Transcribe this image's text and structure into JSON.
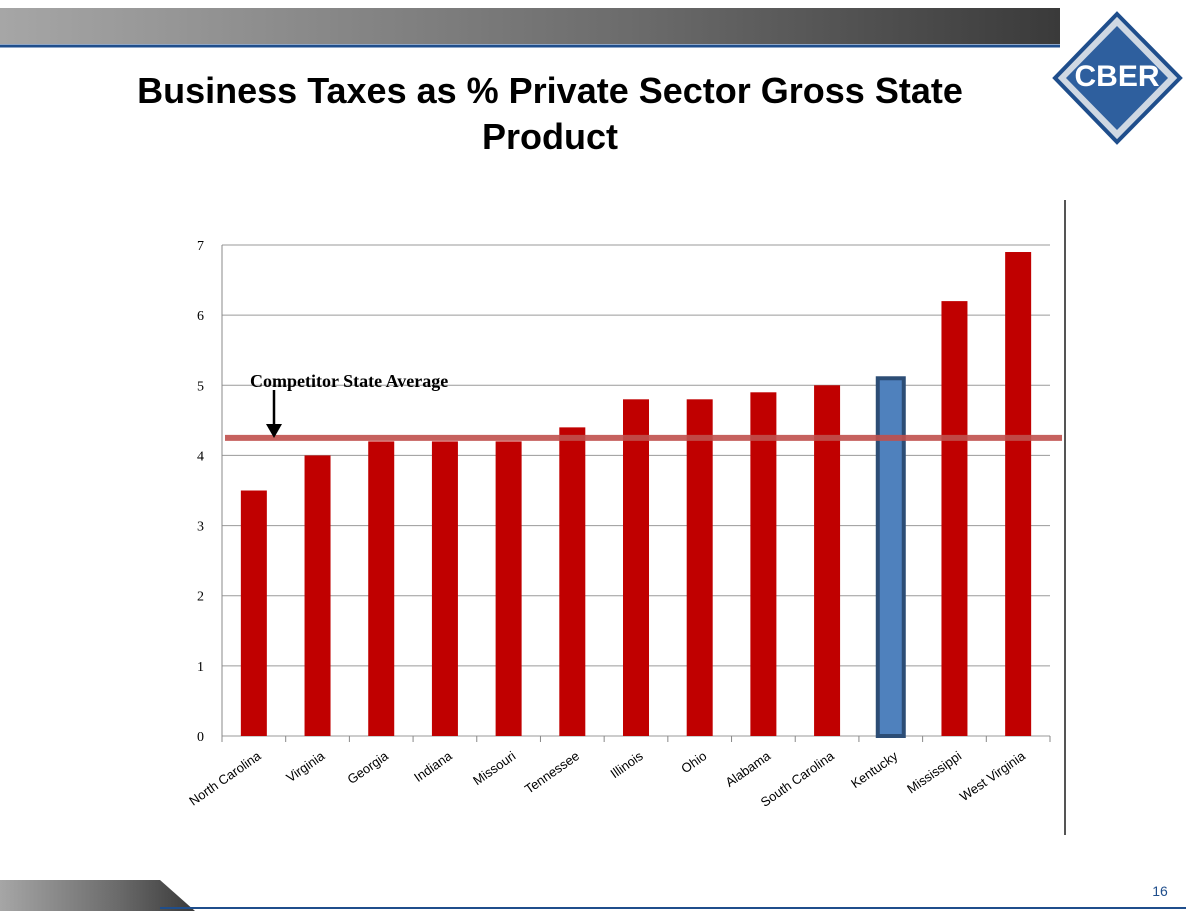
{
  "slide": {
    "title": "Business Taxes as % Private Sector Gross State Product",
    "logo": "CBER",
    "page_number": "16"
  },
  "chart_data": {
    "type": "bar",
    "categories": [
      "North Carolina",
      "Virginia",
      "Georgia",
      "Indiana",
      "Missouri",
      "Tennessee",
      "Illinois",
      "Ohio",
      "Alabama",
      "South Carolina",
      "Kentucky",
      "Mississippi",
      "West Virginia"
    ],
    "values": [
      3.5,
      4.0,
      4.2,
      4.2,
      4.2,
      4.4,
      4.8,
      4.8,
      4.9,
      5.0,
      5.1,
      6.2,
      6.9
    ],
    "colors": [
      "#c00000",
      "#c00000",
      "#c00000",
      "#c00000",
      "#c00000",
      "#c00000",
      "#c00000",
      "#c00000",
      "#c00000",
      "#c00000",
      "#4f81bd",
      "#c00000",
      "#c00000"
    ],
    "reference_line": {
      "value": 4.25,
      "label": "Competitor State Average",
      "color": "#c0504d"
    },
    "ylim": [
      0,
      7
    ],
    "yticks": [
      0,
      1,
      2,
      3,
      4,
      5,
      6,
      7
    ],
    "grid": true
  }
}
